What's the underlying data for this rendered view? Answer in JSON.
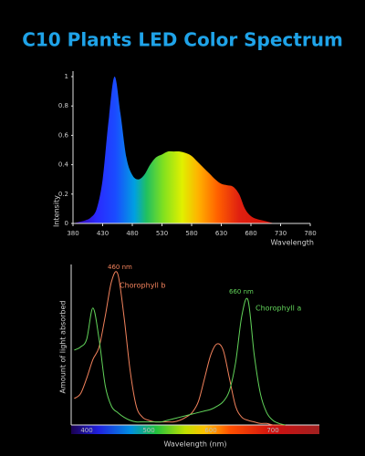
{
  "chart_data": [
    {
      "type": "area",
      "title": "C10 Plants LED Color Spectrum",
      "x": [
        380,
        390,
        400,
        410,
        420,
        430,
        440,
        450,
        460,
        470,
        480,
        490,
        500,
        510,
        520,
        530,
        540,
        550,
        560,
        570,
        580,
        590,
        600,
        610,
        620,
        630,
        640,
        650,
        660,
        670,
        680,
        690,
        700,
        710,
        720,
        730,
        740,
        750,
        760,
        770,
        780
      ],
      "values": [
        0,
        0.01,
        0.02,
        0.04,
        0.1,
        0.3,
        0.7,
        1,
        0.75,
        0.45,
        0.33,
        0.3,
        0.33,
        0.4,
        0.45,
        0.47,
        0.49,
        0.49,
        0.49,
        0.48,
        0.46,
        0.42,
        0.38,
        0.34,
        0.3,
        0.27,
        0.26,
        0.25,
        0.2,
        0.1,
        0.05,
        0.03,
        0.02,
        0.01,
        0,
        0,
        0,
        0,
        0,
        0,
        0
      ],
      "xlim": [
        380,
        780
      ],
      "xticks": [
        380,
        430,
        480,
        530,
        580,
        630,
        680,
        730,
        780
      ],
      "ylim": [
        0,
        1
      ],
      "yticks": [
        0,
        0.2,
        0.4,
        0.6,
        0.8,
        1
      ],
      "xlabel": "Wavelength",
      "ylabel": "Intensity"
    },
    {
      "type": "line",
      "x": [
        380,
        390,
        400,
        410,
        420,
        430,
        440,
        450,
        460,
        470,
        480,
        490,
        500,
        510,
        520,
        530,
        540,
        550,
        560,
        570,
        580,
        590,
        600,
        610,
        620,
        630,
        640,
        650,
        660,
        670,
        680,
        690,
        700,
        710,
        720
      ],
      "series": [
        {
          "name": "Chorophyll b",
          "color": "#f2825c",
          "values": [
            0.17,
            0.2,
            0.3,
            0.42,
            0.5,
            0.7,
            0.92,
            0.97,
            0.7,
            0.35,
            0.12,
            0.05,
            0.03,
            0.02,
            0.02,
            0.02,
            0.02,
            0.03,
            0.05,
            0.08,
            0.15,
            0.3,
            0.45,
            0.52,
            0.48,
            0.3,
            0.12,
            0.05,
            0.03,
            0.02,
            0.01,
            0.01,
            0,
            0,
            0
          ]
        },
        {
          "name": "Chorophyll a",
          "color": "#62d45a",
          "values": [
            0.48,
            0.5,
            0.55,
            0.75,
            0.55,
            0.25,
            0.12,
            0.08,
            0.05,
            0.03,
            0.02,
            0.02,
            0.02,
            0.02,
            0.02,
            0.03,
            0.04,
            0.05,
            0.06,
            0.07,
            0.08,
            0.09,
            0.1,
            0.12,
            0.15,
            0.22,
            0.4,
            0.7,
            0.8,
            0.45,
            0.2,
            0.08,
            0.03,
            0.01,
            0
          ]
        }
      ],
      "annotations": [
        "460 nm",
        "660 nm"
      ],
      "xlim": [
        375,
        775
      ],
      "xticks": [
        400,
        500,
        600,
        700
      ],
      "ylim": [
        0,
        1
      ],
      "xlabel": "Wavelength (nm)",
      "ylabel": "Amount of light absorbed"
    }
  ]
}
